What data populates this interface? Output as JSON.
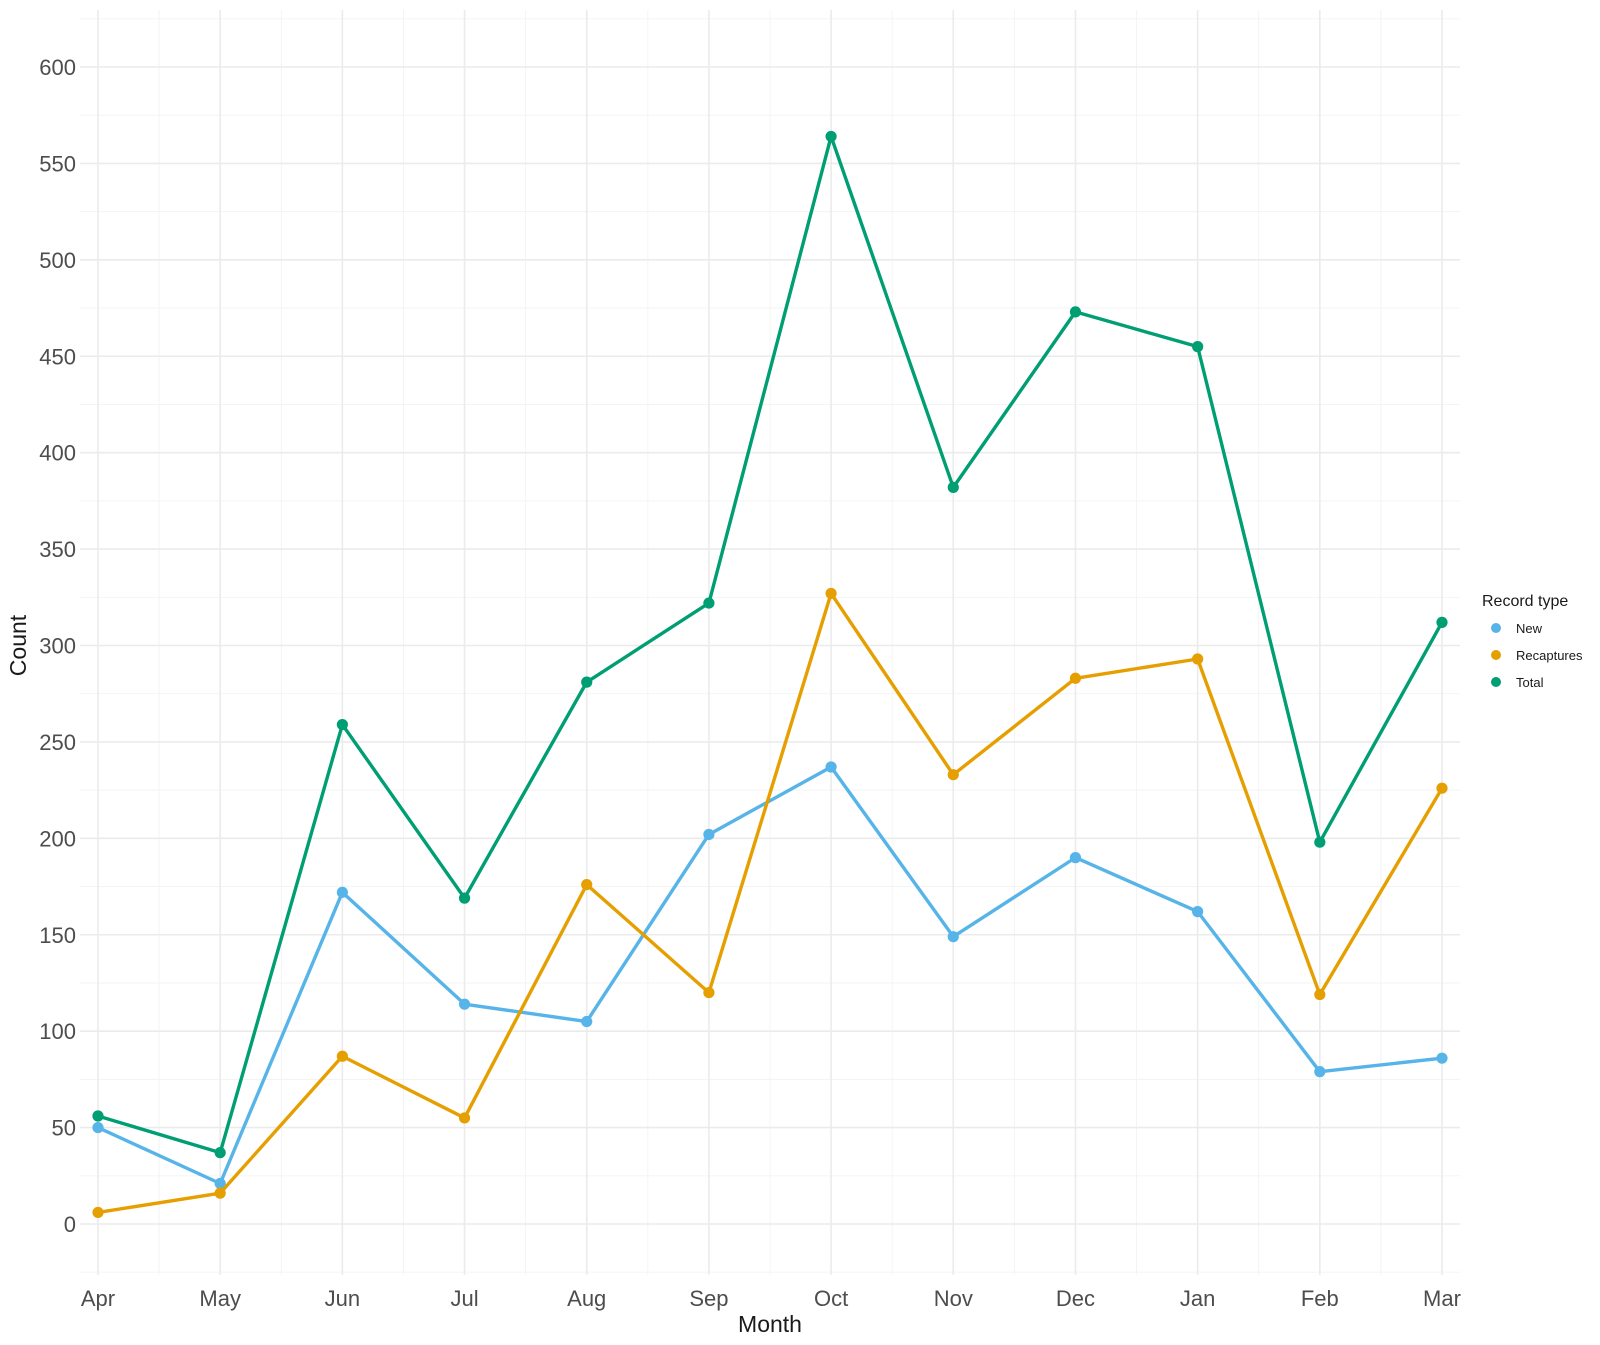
{
  "chart_data": {
    "type": "line",
    "title": "",
    "xlabel": "Month",
    "ylabel": "Count",
    "categories": [
      "Apr",
      "May",
      "Jun",
      "Jul",
      "Aug",
      "Sep",
      "Oct",
      "Nov",
      "Dec",
      "Jan",
      "Feb",
      "Mar"
    ],
    "ylim": [
      -25,
      625
    ],
    "yticks": [
      0,
      50,
      100,
      150,
      200,
      250,
      300,
      350,
      400,
      450,
      500,
      550,
      600
    ],
    "grid": true,
    "legend": {
      "title": "Record type",
      "position": "right"
    },
    "series": [
      {
        "name": "New",
        "color": "#56B4E9",
        "values": [
          50,
          21,
          172,
          114,
          105,
          202,
          237,
          149,
          190,
          162,
          79,
          86
        ]
      },
      {
        "name": "Recaptures",
        "color": "#E69F00",
        "values": [
          6,
          16,
          87,
          55,
          176,
          120,
          327,
          233,
          283,
          293,
          119,
          226
        ]
      },
      {
        "name": "Total",
        "color": "#009E73",
        "values": [
          56,
          37,
          259,
          169,
          281,
          322,
          564,
          382,
          473,
          455,
          198,
          312
        ]
      }
    ]
  }
}
